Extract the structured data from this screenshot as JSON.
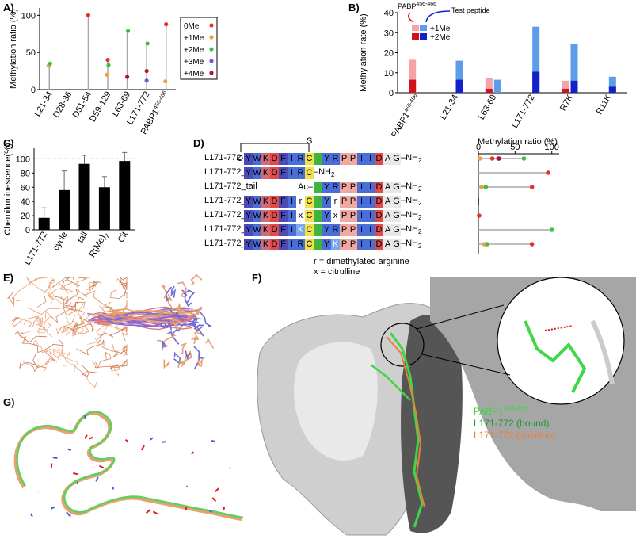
{
  "panels": {
    "A": "A)",
    "B": "B)",
    "C": "C)",
    "D": "D)",
    "E": "E)",
    "F": "F)",
    "G": "G)"
  },
  "colors": {
    "0Me": "#e8312a",
    "+1Me": "#f0a04a",
    "+2Me": "#3fbf3f",
    "+3Me": "#6b5fd1",
    "+4Me": "#b5122a"
  },
  "chart_data": [
    {
      "panel": "A",
      "type": "scatter",
      "ylabel": "Methylation ratio (%)",
      "ylim": [
        0,
        110
      ],
      "yticks": [
        0,
        50,
        100
      ],
      "categories": [
        "L21-34",
        "D28-36",
        "D51-54",
        "D59-129",
        "L63-69",
        "L171-772",
        "PABP1456-466"
      ],
      "category_labels": [
        {
          "text": "L21-34",
          "sup": ""
        },
        {
          "text": "D28-36",
          "sup": ""
        },
        {
          "text": "D51-54",
          "sup": ""
        },
        {
          "text": "D59-129",
          "sup": ""
        },
        {
          "text": "L63-69",
          "sup": ""
        },
        {
          "text": "L171-772",
          "sup": ""
        },
        {
          "text": "PABP1",
          "sup": "456-466"
        }
      ],
      "legend": {
        "labels": [
          "0Me",
          "+1Me",
          "+2Me",
          "+3Me",
          "+4Me"
        ],
        "placement": "right"
      },
      "series": [
        {
          "name": "0Me",
          "values": [
            33,
            0,
            100,
            40,
            0,
            0,
            88
          ]
        },
        {
          "name": "+1Me",
          "values": [
            32,
            0,
            0,
            20,
            0,
            0,
            11
          ]
        },
        {
          "name": "+2Me",
          "values": [
            35,
            0,
            0,
            33,
            79,
            62,
            0
          ]
        },
        {
          "name": "+3Me",
          "values": [
            0,
            0,
            0,
            0,
            0,
            12,
            0
          ]
        },
        {
          "name": "+4Me",
          "values": [
            0,
            0,
            0,
            0,
            17,
            25,
            0
          ]
        }
      ]
    },
    {
      "panel": "B",
      "type": "bar",
      "ylabel": "Methylation rate (%)",
      "ylim": [
        0,
        40
      ],
      "yticks": [
        0,
        10,
        20,
        30,
        40
      ],
      "categories": [
        "PABP1456-466",
        "L21-34",
        "L63-69",
        "L171-772",
        "R7K",
        "R11K"
      ],
      "category_labels": [
        {
          "text": "PABP1",
          "sup": "456-466"
        },
        {
          "text": "L21-34",
          "sup": ""
        },
        {
          "text": "L63-69",
          "sup": ""
        },
        {
          "text": "L171-772",
          "sup": ""
        },
        {
          "text": "R7K",
          "sup": ""
        },
        {
          "text": "R11K",
          "sup": ""
        }
      ],
      "legend": {
        "labels": [
          "+1Me",
          "+2Me"
        ],
        "placement": "top-left"
      },
      "annotations": {
        "pabp": "PABP",
        "pabp_sup": "456-466",
        "test": "Test peptide"
      },
      "series": [
        {
          "name": "+1Me",
          "group": "PABP",
          "values": [
            16.5,
            0,
            7.5,
            0,
            6,
            0
          ]
        },
        {
          "name": "+2Me",
          "group": "PABP",
          "values": [
            6.5,
            0,
            2,
            0,
            2,
            0
          ]
        },
        {
          "name": "+1Me",
          "group": "Test",
          "values": [
            0,
            16,
            6.5,
            33,
            24.5,
            8
          ]
        },
        {
          "name": "+2Me",
          "group": "Test",
          "values": [
            0,
            6.5,
            0,
            10.5,
            6,
            3
          ]
        }
      ]
    },
    {
      "panel": "C",
      "type": "bar",
      "ylabel": "Chemiluminescence(%)",
      "ylim": [
        0,
        115
      ],
      "yticks": [
        0,
        20,
        40,
        60,
        80,
        100
      ],
      "categories": [
        "L171-772",
        "cycle",
        "tail",
        "R(Me)2",
        "Cit"
      ],
      "category_labels": [
        {
          "text": "L171-772",
          "sub": ""
        },
        {
          "text": "cycle",
          "sub": ""
        },
        {
          "text": "tail",
          "sub": ""
        },
        {
          "text": "R(Me)",
          "sub": "2"
        },
        {
          "text": "Cit",
          "sub": ""
        }
      ],
      "values": [
        17,
        56,
        93,
        60,
        97
      ],
      "errors": [
        14,
        27,
        12,
        15,
        12
      ],
      "reference_line": 100
    },
    {
      "panel": "D",
      "type": "scatter",
      "xlabel": "Methylation ratio (%)",
      "xlim": [
        0,
        110
      ],
      "xticks": [
        0,
        50,
        100
      ],
      "rows": [
        "L171-772",
        "L171-772_cycle",
        "L171-772_tail",
        "L171-772_R(Me)2",
        "L171-772_Cit",
        "L171-772_R7K",
        "L171-772_R11K"
      ],
      "series": [
        {
          "name": "0Me",
          "values": [
            19,
            95,
            73,
            0,
            1,
            0,
            73
          ]
        },
        {
          "name": "+1Me",
          "values": [
            2,
            0,
            4,
            0,
            0,
            0,
            8
          ]
        },
        {
          "name": "+2Me",
          "values": [
            62,
            0,
            10,
            0,
            0,
            100,
            12
          ]
        },
        {
          "name": "+3Me",
          "values": [
            27,
            0,
            0,
            0,
            0,
            0,
            0
          ]
        },
        {
          "name": "+4Me",
          "values": [
            28,
            0,
            0,
            0,
            0,
            0,
            0
          ]
        }
      ]
    }
  ],
  "panelD": {
    "bracket_label": "S",
    "rows": [
      {
        "name": "L171-772",
        "sub": "",
        "prefix": "O",
        "prefix_type": "carbonyl",
        "seq": "YWKDFIRCIYRPPIIDAG",
        "suffix": "–NH",
        "suffix_sub": "2",
        "start": 0
      },
      {
        "name": "L171-772_cycle",
        "sub": "",
        "prefix": "",
        "prefix_type": "",
        "seq": "YWKDFIRC",
        "suffix": "–NH",
        "suffix_sub": "2",
        "start": 0
      },
      {
        "name": "L171-772_tail",
        "sub": "",
        "prefix": "Ac–",
        "prefix_type": "acetyl",
        "seq": "IYRPPIIDAG",
        "suffix": "–NH",
        "suffix_sub": "2",
        "start": 8
      },
      {
        "name": "L171-772_R(Me)",
        "sub": "2",
        "prefix": "",
        "prefix_type": "",
        "seq": "YWKDFIrCIYrPPIIDAG",
        "suffix": "–NH",
        "suffix_sub": "2",
        "start": 0
      },
      {
        "name": "L171-772_Cit",
        "sub": "",
        "prefix": "",
        "prefix_type": "",
        "seq": "YWKDFIxCIYxPPIIDAG",
        "suffix": "–NH",
        "suffix_sub": "2",
        "start": 0
      },
      {
        "name": "L171-772_R7K",
        "sub": "",
        "prefix": "",
        "prefix_type": "",
        "seq": "YWKDFIKCIYRPPIIDAG",
        "suffix": "–NH",
        "suffix_sub": "2",
        "start": 0
      },
      {
        "name": "L171-772_R11K",
        "sub": "",
        "prefix": "",
        "prefix_type": "",
        "seq": "YWKDFIRCIYKPPIIDAG",
        "suffix": "–NH",
        "suffix_sub": "2",
        "start": 0
      }
    ],
    "legend": [
      {
        "key": "r",
        "text": " = dimethylated arginine"
      },
      {
        "key": "x",
        "text": " = citrulline"
      }
    ]
  },
  "panelF": {
    "labels": [
      {
        "text": "PABP1",
        "sup": "456-466",
        "color": "#3fd64a"
      },
      {
        "text": "L171-772 (bound)",
        "sup": "",
        "color": "#1a9a2a"
      },
      {
        "text": "L171-772 (solution)",
        "sup": "",
        "color": "#e8803a"
      }
    ]
  }
}
